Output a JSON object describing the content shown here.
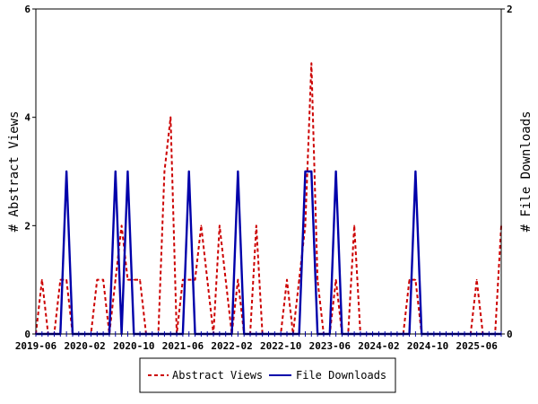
{
  "chart_data": {
    "type": "line",
    "xlabel": "",
    "ylabel_left": "# Abstract Views",
    "ylabel_right": "# File Downloads",
    "ylim_left": [
      0,
      6
    ],
    "ylim_right": [
      0,
      2
    ],
    "yticks_left": [
      "0",
      "2",
      "4",
      "6"
    ],
    "yticks_right": [
      "0",
      "2"
    ],
    "x_start": "2019-06",
    "x_tick_labels": [
      "2019-06",
      "2020-02",
      "2020-10",
      "2021-06",
      "2022-02",
      "2022-10",
      "2023-06",
      "2024-02",
      "2024-10",
      "2025-06"
    ],
    "x_tick_indices": [
      0,
      8,
      16,
      24,
      32,
      40,
      48,
      56,
      64,
      72
    ],
    "grid": false,
    "legend_position": "bottom",
    "series": [
      {
        "name": "Abstract Views",
        "axis": "left",
        "color": "#cc0000",
        "dash": true,
        "values": [
          0,
          1,
          0,
          0,
          1,
          1,
          0,
          0,
          0,
          0,
          1,
          1,
          0,
          1,
          2,
          1,
          1,
          1,
          0,
          0,
          0,
          3,
          4,
          0,
          1,
          1,
          1,
          2,
          1,
          0,
          2,
          1,
          0,
          1,
          0,
          0,
          2,
          0,
          0,
          0,
          0,
          1,
          0,
          1,
          2,
          5,
          1,
          0,
          0,
          1,
          0,
          0,
          2,
          0,
          0,
          0,
          0,
          0,
          0,
          0,
          0,
          1,
          1,
          0,
          0,
          0,
          0,
          0,
          0,
          0,
          0,
          0,
          1,
          0,
          0,
          0,
          2
        ]
      },
      {
        "name": "File Downloads",
        "axis": "right",
        "color": "#0000aa",
        "dash": false,
        "values": [
          0,
          0,
          0,
          0,
          0,
          1,
          0,
          0,
          0,
          0,
          0,
          0,
          0,
          1,
          0,
          1,
          0,
          0,
          0,
          0,
          0,
          0,
          0,
          0,
          0,
          1,
          0,
          0,
          0,
          0,
          0,
          0,
          0,
          1,
          0,
          0,
          0,
          0,
          0,
          0,
          0,
          0,
          0,
          0,
          1,
          1,
          0,
          0,
          0,
          1,
          0,
          0,
          0,
          0,
          0,
          0,
          0,
          0,
          0,
          0,
          0,
          0,
          1,
          0,
          0,
          0,
          0,
          0,
          0,
          0,
          0,
          0,
          0,
          0,
          0,
          0,
          0
        ]
      }
    ]
  }
}
